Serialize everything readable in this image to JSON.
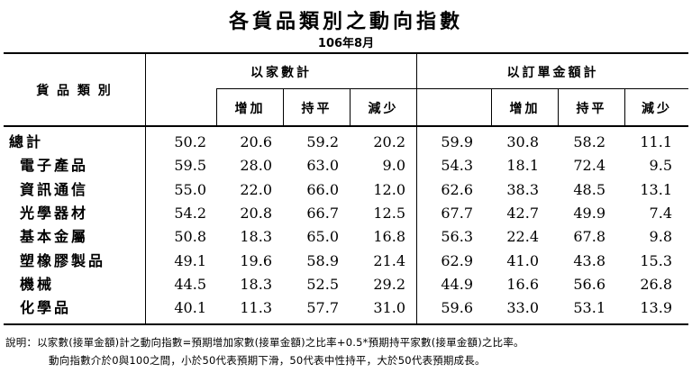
{
  "title": "各貨品類別之動向指數",
  "subtitle": "106年8月",
  "header": {
    "category": "貨 品 類 別",
    "group1": "以家數計",
    "group2": "以訂單金額計",
    "cols": [
      "增加",
      "持平",
      "減少"
    ]
  },
  "rows": [
    {
      "name": "總計",
      "v": [
        "50.2",
        "20.6",
        "59.2",
        "20.2",
        "59.9",
        "30.8",
        "58.2",
        "11.1"
      ]
    },
    {
      "name": "電子產品",
      "v": [
        "59.5",
        "28.0",
        "63.0",
        "9.0",
        "54.3",
        "18.1",
        "72.4",
        "9.5"
      ]
    },
    {
      "name": "資訊通信",
      "v": [
        "55.0",
        "22.0",
        "66.0",
        "12.0",
        "62.6",
        "38.3",
        "48.5",
        "13.1"
      ]
    },
    {
      "name": "光學器材",
      "v": [
        "54.2",
        "20.8",
        "66.7",
        "12.5",
        "67.7",
        "42.7",
        "49.9",
        "7.4"
      ]
    },
    {
      "name": "基本金屬",
      "v": [
        "50.8",
        "18.3",
        "65.0",
        "16.8",
        "56.3",
        "22.4",
        "67.8",
        "9.8"
      ]
    },
    {
      "name": "塑橡膠製品",
      "v": [
        "49.1",
        "19.6",
        "58.9",
        "21.4",
        "62.9",
        "41.0",
        "43.8",
        "15.3"
      ]
    },
    {
      "name": "機械",
      "v": [
        "44.5",
        "18.3",
        "52.5",
        "29.2",
        "44.9",
        "16.6",
        "56.6",
        "26.8"
      ]
    },
    {
      "name": "化學品",
      "v": [
        "40.1",
        "11.3",
        "57.7",
        "31.0",
        "59.6",
        "33.0",
        "53.1",
        "13.9"
      ]
    }
  ],
  "notes": [
    "說明：以家數(接單金額)計之動向指數=預期增加家數(接單金額)之比率+0.5*預期持平家數(接單金額)之比率。",
    "動向指數介於0與100之間，小於50代表預期下滑，50代表中性持平，大於50代表預期成長。"
  ]
}
